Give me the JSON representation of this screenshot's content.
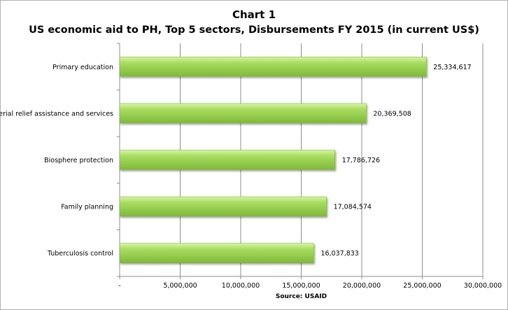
{
  "chart_data": {
    "type": "bar",
    "orientation": "horizontal",
    "title": "Chart 1",
    "subtitle": "US economic aid to PH, Top 5 sectors, Disbursements FY 2015 (in current US$)",
    "categories": [
      "Primary education",
      "Material relief assistance and services",
      "Biosphere protection",
      "Family planning",
      "Tuberculosis control"
    ],
    "values": [
      25334617,
      20369508,
      17786726,
      17084574,
      16037833
    ],
    "data_labels": [
      "25,334,617",
      "20,369,508",
      "17,786,726",
      "17,084,574",
      "16,037,833"
    ],
    "x_ticks": [
      0,
      5000000,
      10000000,
      15000000,
      20000000,
      25000000,
      30000000
    ],
    "x_tick_labels": [
      "-",
      "5,000,000",
      "10,000,000",
      "15,000,000",
      "20,000,000",
      "25,000,000",
      "30,000,000"
    ],
    "xlim": [
      0,
      30000000
    ],
    "xlabel": "Source: USAID",
    "ylabel": "",
    "grid": "vertical",
    "legend": "none",
    "bar_color": "#a8dd60",
    "bar_highlight_color": "#d9f4a8",
    "bar_shadow_color": "#7fb83a"
  }
}
